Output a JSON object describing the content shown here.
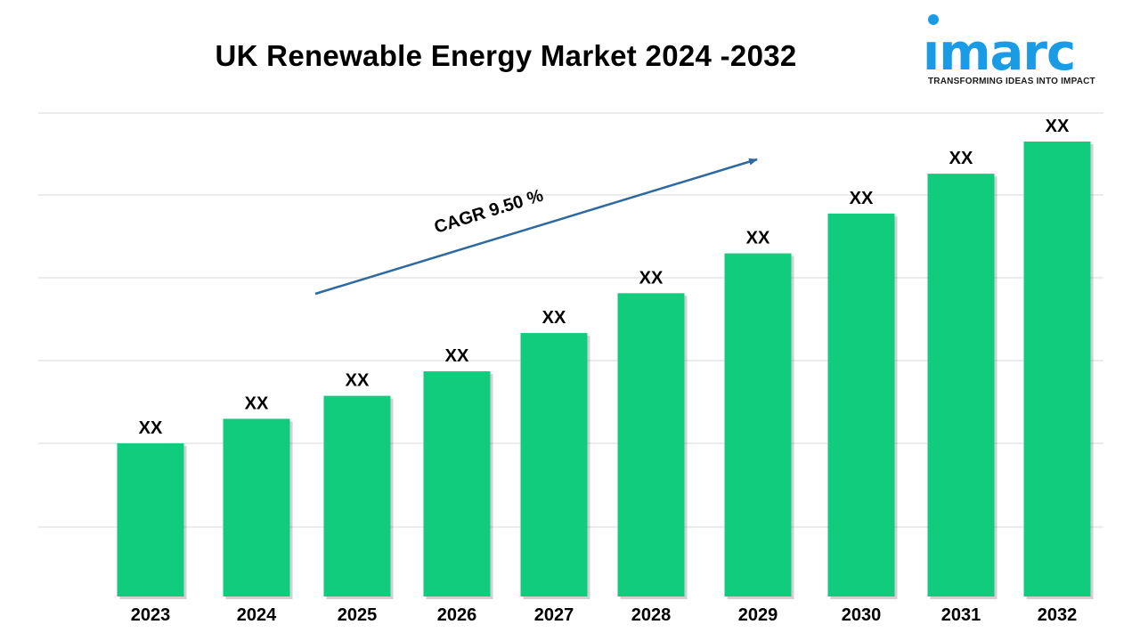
{
  "chart_data": {
    "type": "bar",
    "title": "UK Renewable Energy Market 2024 -2032",
    "categories": [
      "2023",
      "2024",
      "2025",
      "2026",
      "2027",
      "2028",
      "2029",
      "2030",
      "2031",
      "2032"
    ],
    "values": [
      1.0,
      1.16,
      1.31,
      1.47,
      1.72,
      1.98,
      2.24,
      2.5,
      2.76,
      2.97
    ],
    "value_labels": [
      "XX",
      "XX",
      "XX",
      "XX",
      "XX",
      "XX",
      "XX",
      "XX",
      "XX",
      "XX"
    ],
    "annotation": "CAGR 9.50 %",
    "bar_color": "#12cc7e",
    "arrow_color": "#2e6aa0",
    "grid": true,
    "ylim": [
      0,
      3.3
    ]
  },
  "logo": {
    "word": "ımarc",
    "tagline": "TRANSFORMING IDEAS INTO IMPACT",
    "color": "#1a9be6"
  }
}
